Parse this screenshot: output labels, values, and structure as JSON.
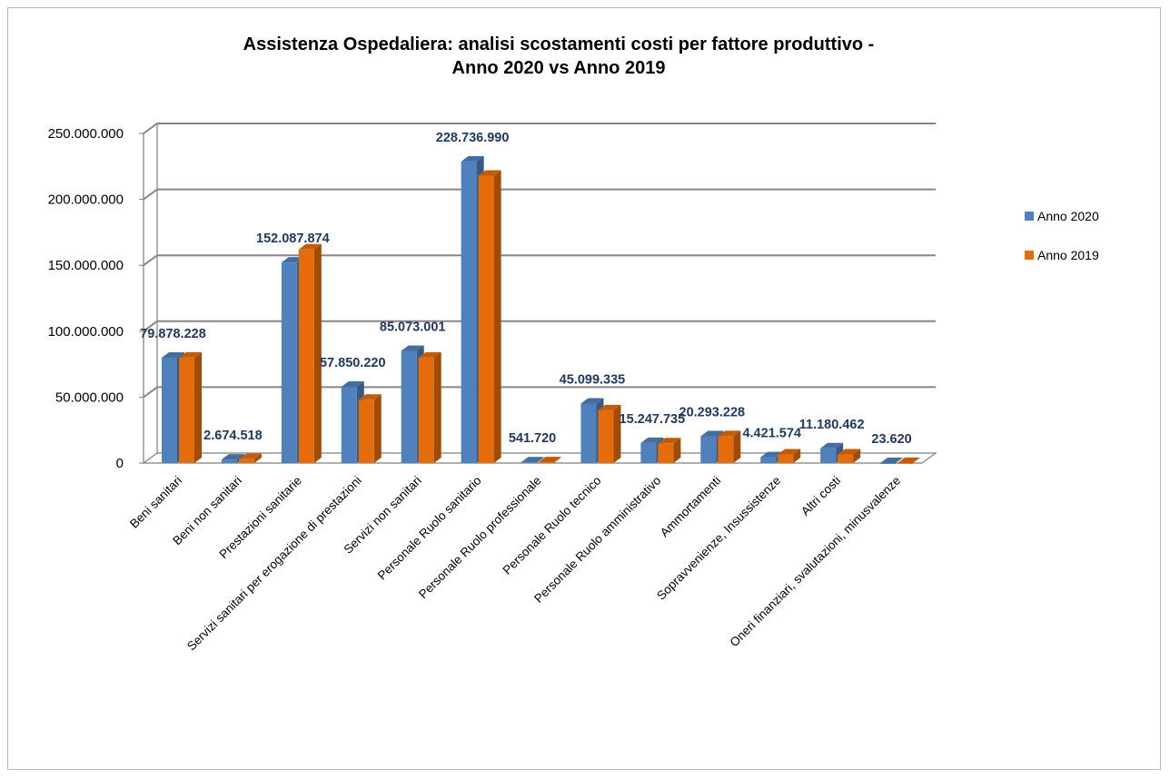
{
  "chart_data": {
    "type": "bar",
    "title_lines": [
      "Assistenza Ospedaliera: analisi scostamenti costi per fattore produttivo -",
      "Anno 2020 vs Anno 2019"
    ],
    "categories": [
      "Beni sanitari",
      "Beni non sanitari",
      "Prestazioni sanitarie",
      "Servizi sanitari per erogazione di prestazioni",
      "Servizi non sanitari",
      "Personale Ruolo sanitario",
      "Personale Ruolo professionale",
      "Personale Ruolo tecnico",
      "Personale Ruolo amministrativo",
      "Ammortamenti",
      "Sopravvenienze, Insussistenze",
      "Altri costi",
      "Oneri finanziari, svalutazioni, minusvalenze"
    ],
    "series": [
      {
        "name": "Anno 2020",
        "color": "#4f81bd",
        "values": [
          79878228,
          2674518,
          152087874,
          57850220,
          85073001,
          228736990,
          541720,
          45099335,
          15247735,
          20293228,
          4421574,
          11180462,
          23620
        ]
      },
      {
        "name": "Anno 2019",
        "color": "#e46c0a",
        "values": [
          80000000,
          3000000,
          162000000,
          48000000,
          80000000,
          218000000,
          600000,
          40000000,
          15000000,
          20400000,
          6500000,
          6500000,
          100000
        ]
      }
    ],
    "data_labels": [
      "79.878.228",
      "2.674.518",
      "152.087.874",
      "57.850.220",
      "85.073.001",
      "228.736.990",
      "541.720",
      "45.099.335",
      "15.247.735",
      "20.293.228",
      "4.421.574",
      "11.180.462",
      "23.620"
    ],
    "y_ticks": [
      {
        "value": 0,
        "label": "0"
      },
      {
        "value": 50000000,
        "label": "50.000.000"
      },
      {
        "value": 100000000,
        "label": "100.000.000"
      },
      {
        "value": 150000000,
        "label": "150.000.000"
      },
      {
        "value": 200000000,
        "label": "200.000.000"
      },
      {
        "value": 250000000,
        "label": "250.000.000"
      }
    ],
    "ylim": [
      0,
      250000000
    ],
    "grid": true,
    "legend_position": "right"
  }
}
